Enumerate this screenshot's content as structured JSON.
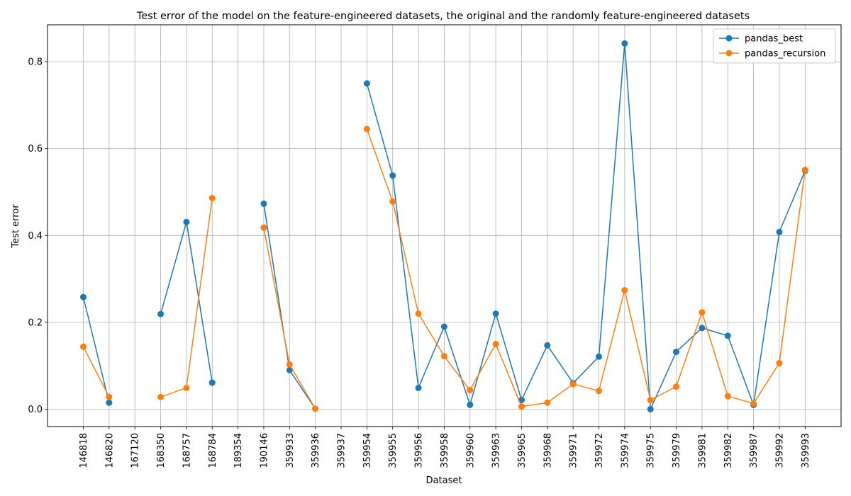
{
  "chart_data": {
    "type": "line",
    "title": "Test error of the model on the feature-engineered datasets, the original and the randomly feature-engineered datasets",
    "xlabel": "Dataset",
    "ylabel": "Test error",
    "categories": [
      "146818",
      "146820",
      "167120",
      "168350",
      "168757",
      "168784",
      "189354",
      "190146",
      "359933",
      "359936",
      "359937",
      "359954",
      "359955",
      "359956",
      "359958",
      "359960",
      "359963",
      "359965",
      "359968",
      "359971",
      "359972",
      "359974",
      "359975",
      "359979",
      "359981",
      "359982",
      "359987",
      "359992",
      "359993"
    ],
    "ylim": [
      -0.04,
      0.885
    ],
    "yticks": [
      0.0,
      0.2,
      0.4,
      0.6,
      0.8
    ],
    "ytick_labels": [
      "0.0",
      "0.2",
      "0.4",
      "0.6",
      "0.8"
    ],
    "grid": true,
    "legend_position": "top-right",
    "series": [
      {
        "name": "pandas_best",
        "color": "#1f77b4",
        "values": [
          0.258,
          0.015,
          null,
          0.219,
          0.431,
          0.061,
          null,
          0.473,
          0.09,
          0.001,
          null,
          0.75,
          0.538,
          0.049,
          0.19,
          0.01,
          0.22,
          0.021,
          0.147,
          0.06,
          0.121,
          0.842,
          0.0,
          0.132,
          0.187,
          0.169,
          0.01,
          0.408,
          0.549
        ]
      },
      {
        "name": "pandas_recursion",
        "color": "#ff7f0e",
        "values": [
          0.144,
          0.028,
          null,
          0.028,
          0.049,
          0.486,
          null,
          0.418,
          0.103,
          0.001,
          null,
          0.645,
          0.478,
          0.22,
          0.122,
          0.044,
          0.15,
          0.006,
          0.015,
          0.058,
          0.042,
          0.274,
          0.021,
          0.052,
          0.223,
          0.03,
          0.013,
          0.106,
          0.551
        ]
      }
    ]
  }
}
